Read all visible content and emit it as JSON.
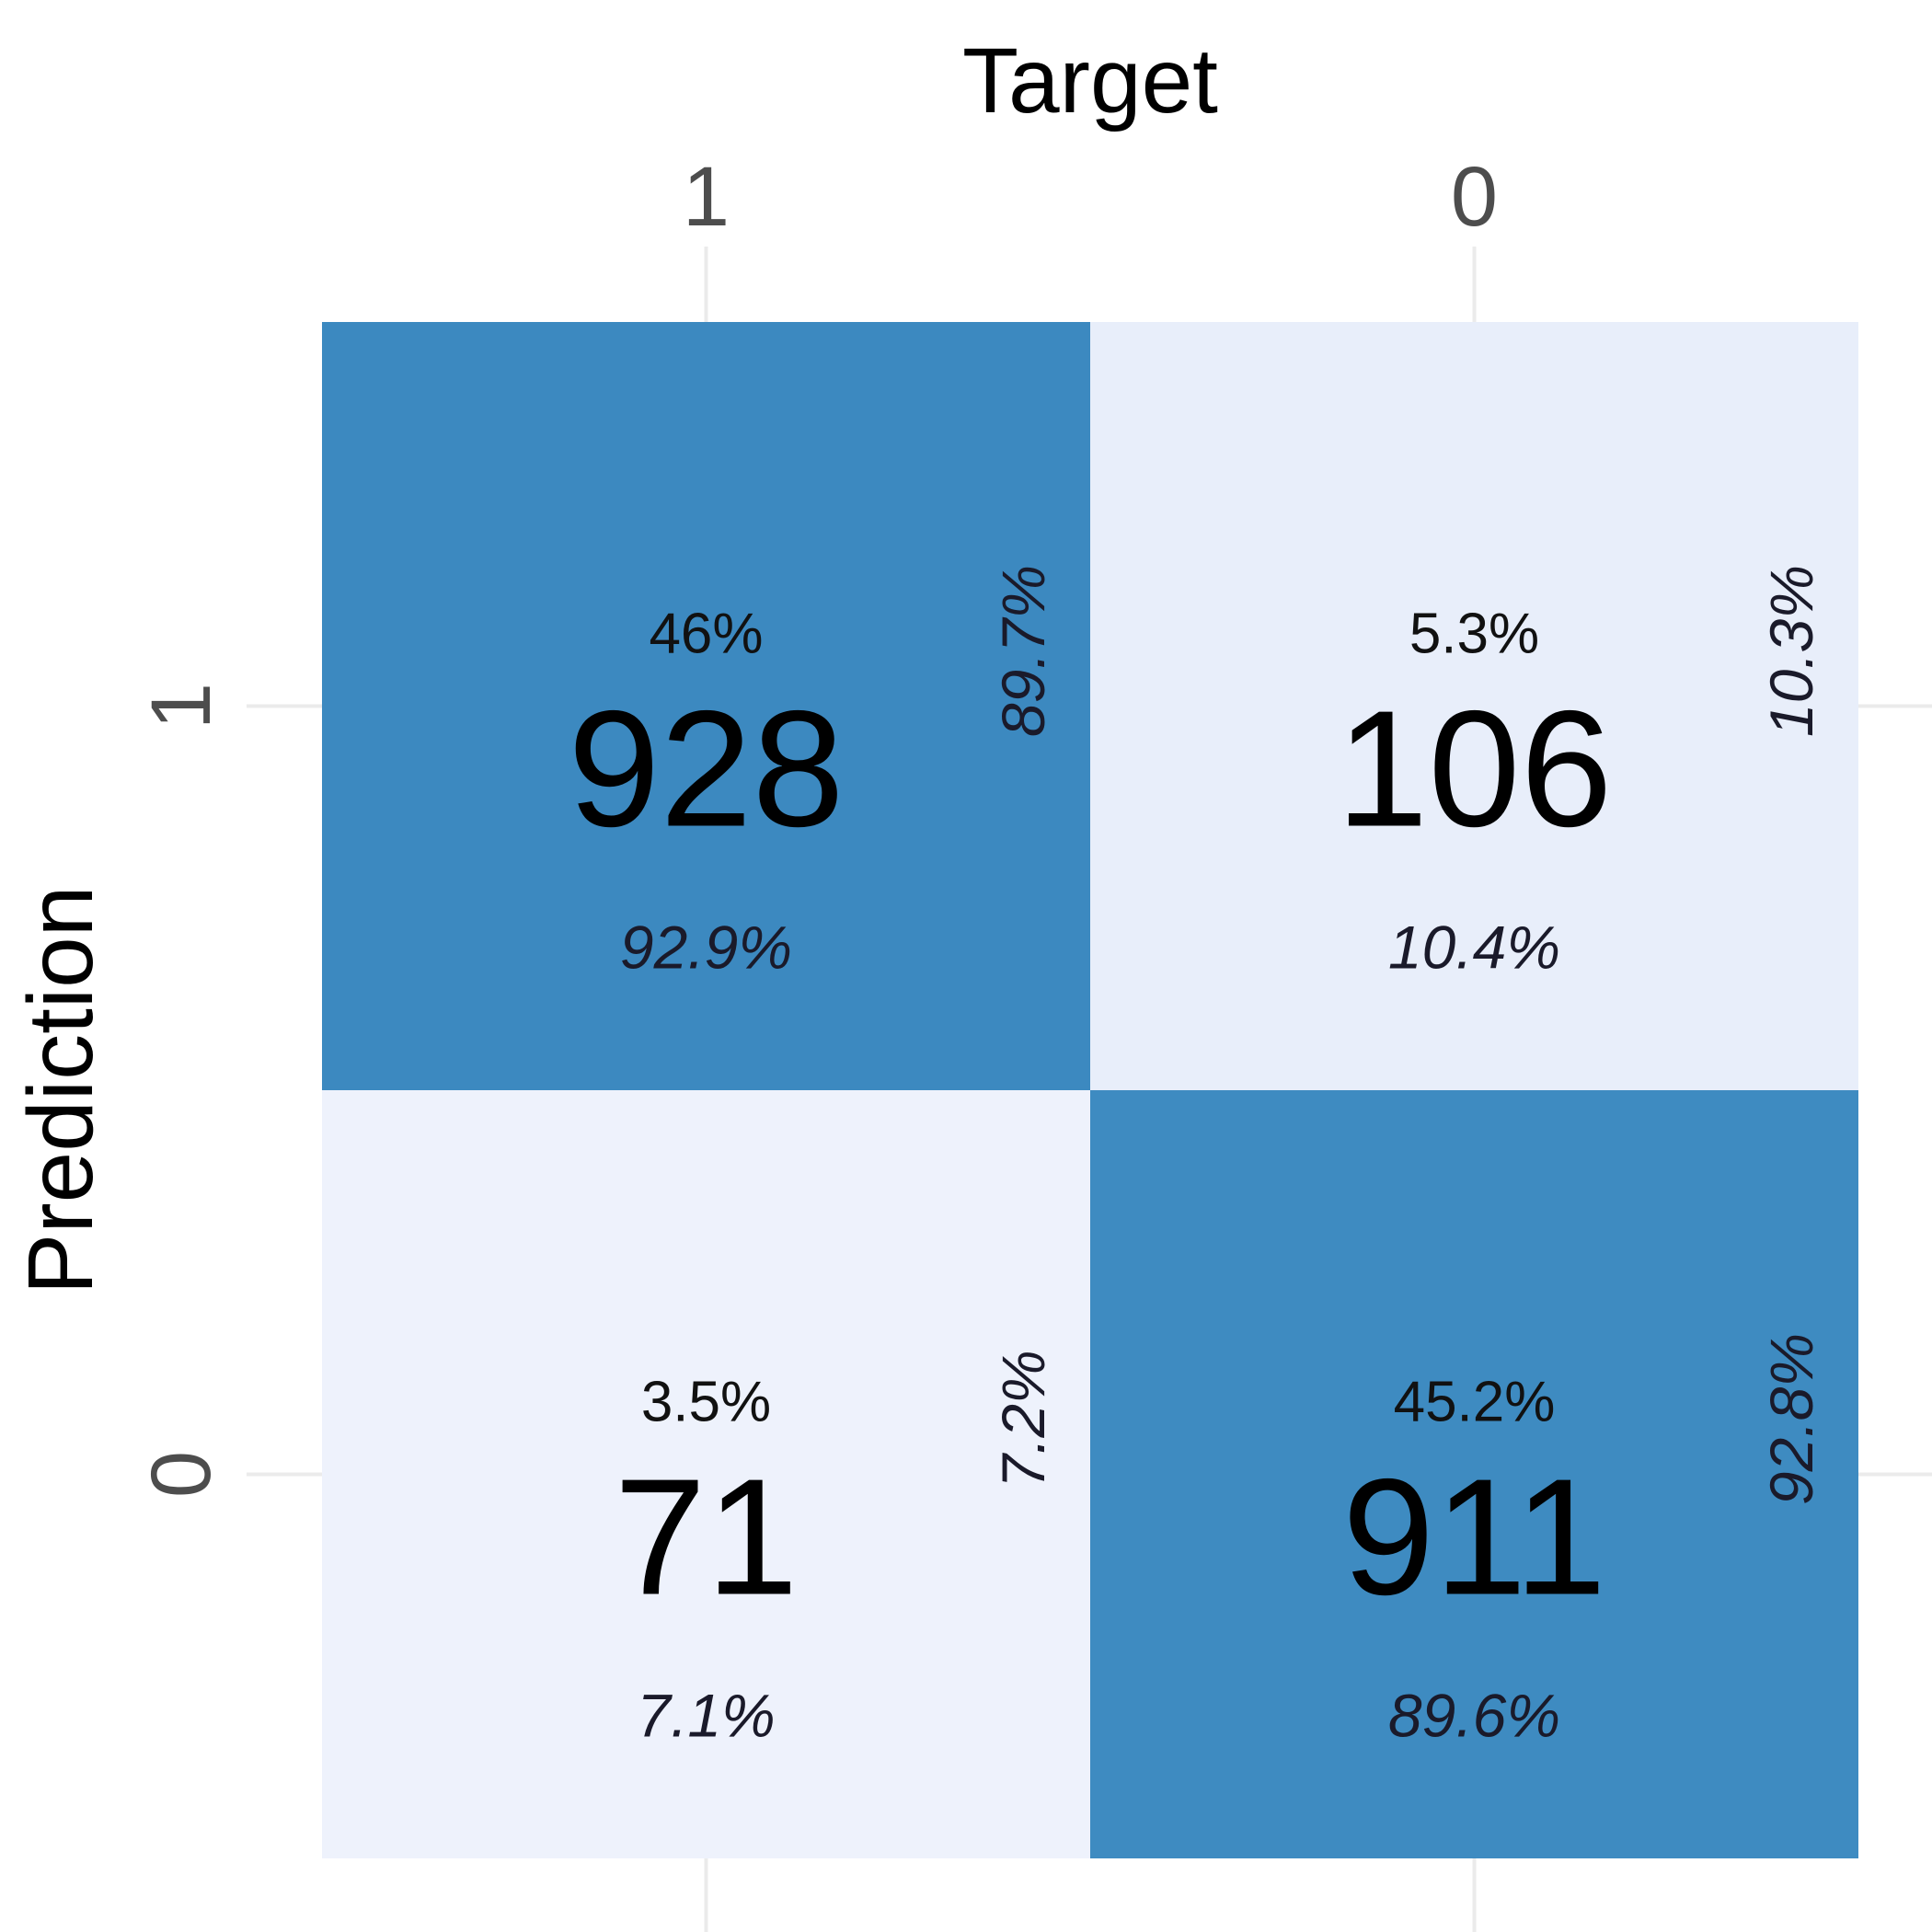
{
  "chart_data": {
    "type": "heatmap",
    "title": "",
    "xlabel": "Target",
    "ylabel": "Prediction",
    "x_categories": [
      "1",
      "0"
    ],
    "y_categories": [
      "1",
      "0"
    ],
    "x_axis_position": "top",
    "grid": true,
    "cells": [
      {
        "row": 0,
        "col": 0,
        "count": "928",
        "percent": "46%",
        "col_percent": "92.9%",
        "row_percent": "89.7%",
        "color": "#3c89c0"
      },
      {
        "row": 0,
        "col": 1,
        "count": "106",
        "percent": "5.3%",
        "col_percent": "10.4%",
        "row_percent": "10.3%",
        "color": "#e8eefa"
      },
      {
        "row": 1,
        "col": 0,
        "count": "71",
        "percent": "3.5%",
        "col_percent": "7.1%",
        "row_percent": "7.2%",
        "color": "#eef2fc"
      },
      {
        "row": 1,
        "col": 1,
        "count": "911",
        "percent": "45.2%",
        "col_percent": "89.6%",
        "row_percent": "92.8%",
        "color": "#3e8bc1"
      }
    ]
  }
}
